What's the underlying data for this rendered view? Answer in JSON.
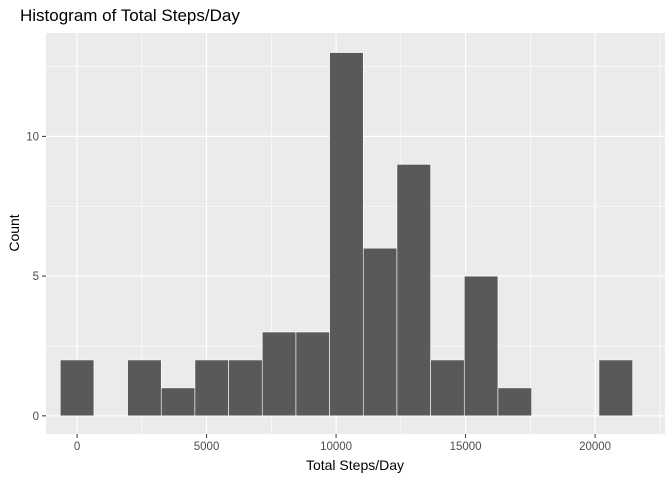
{
  "chart_data": {
    "type": "bar",
    "title": "Histogram of Total Steps/Day",
    "xlabel": "Total  Steps/Day",
    "ylabel": "Count",
    "bin_width": 1300,
    "bins": [
      {
        "x": 0,
        "count": 2
      },
      {
        "x": 2600,
        "count": 2
      },
      {
        "x": 3900,
        "count": 1
      },
      {
        "x": 5200,
        "count": 2
      },
      {
        "x": 6500,
        "count": 2
      },
      {
        "x": 7800,
        "count": 3
      },
      {
        "x": 9100,
        "count": 3
      },
      {
        "x": 10400,
        "count": 13
      },
      {
        "x": 11700,
        "count": 6
      },
      {
        "x": 13000,
        "count": 9
      },
      {
        "x": 14300,
        "count": 2
      },
      {
        "x": 15600,
        "count": 5
      },
      {
        "x": 16900,
        "count": 1
      },
      {
        "x": 20800,
        "count": 2
      }
    ],
    "xlim": [
      -1200,
      22700
    ],
    "ylim": [
      -0.65,
      13.7
    ],
    "xticks": [
      0,
      5000,
      10000,
      15000,
      20000
    ],
    "xtick_labels": [
      "0",
      "5000",
      "10000",
      "15000",
      "20000"
    ],
    "yticks": [
      0,
      5,
      10
    ],
    "ytick_labels": [
      "0",
      "5",
      "10"
    ],
    "grid": true,
    "colors": {
      "panel": "#ebebeb",
      "grid_major": "#ffffff",
      "bar_fill": "#595959",
      "bar_stroke": "#ffffff",
      "tick_text": "#4d4d4d"
    }
  }
}
